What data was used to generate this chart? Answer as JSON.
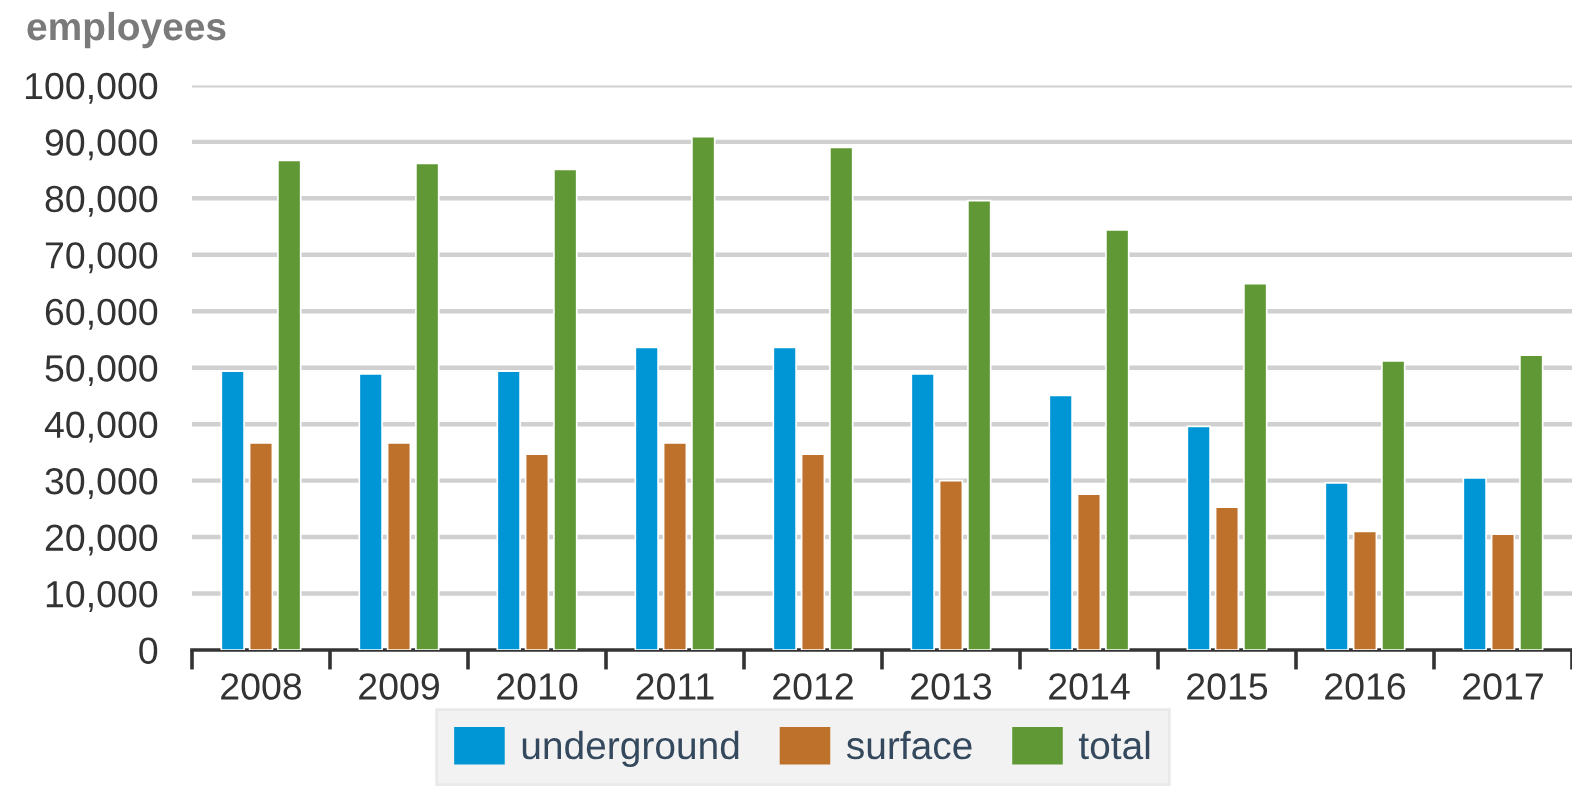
{
  "chart_data": {
    "type": "bar",
    "ylabel": "employees",
    "categories": [
      "2008",
      "2009",
      "2010",
      "2011",
      "2012",
      "2013",
      "2014",
      "2015",
      "2016",
      "2017"
    ],
    "series": [
      {
        "name": "underground",
        "color": "#0096d6",
        "values": [
          49400,
          48900,
          49400,
          53600,
          53600,
          48900,
          45100,
          39600,
          29600,
          30500
        ]
      },
      {
        "name": "surface",
        "color": "#be712b",
        "values": [
          36700,
          36700,
          34700,
          36700,
          34700,
          30000,
          27600,
          25300,
          21000,
          20500
        ]
      },
      {
        "name": "total",
        "color": "#5f9834",
        "values": [
          86700,
          86200,
          85100,
          90900,
          89000,
          79600,
          74400,
          64900,
          51200,
          52200
        ]
      }
    ],
    "ylim": [
      0,
      100000
    ],
    "yticks": [
      {
        "value": 0,
        "label": "0"
      },
      {
        "value": 10000,
        "label": "10,000"
      },
      {
        "value": 20000,
        "label": "20,000"
      },
      {
        "value": 30000,
        "label": "30,000"
      },
      {
        "value": 40000,
        "label": "40,000"
      },
      {
        "value": 50000,
        "label": "50,000"
      },
      {
        "value": 60000,
        "label": "60,000"
      },
      {
        "value": 70000,
        "label": "70,000"
      },
      {
        "value": 80000,
        "label": "80,000"
      },
      {
        "value": 90000,
        "label": "90,000"
      },
      {
        "value": 100000,
        "label": "100,000"
      }
    ],
    "grid": "y",
    "legend": "bottom"
  }
}
